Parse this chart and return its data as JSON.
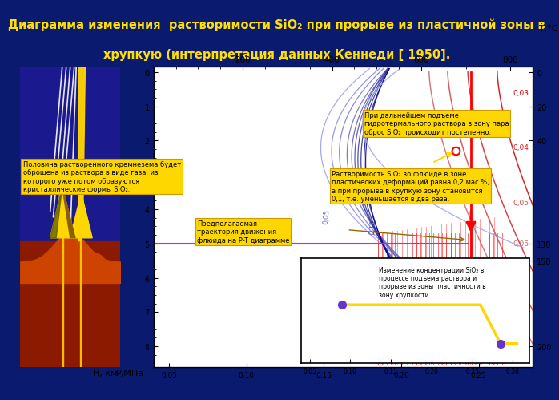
{
  "title_line1": "Диаграмма изменения  растворимости SiO₂ при прорыве из пластичной зоны в",
  "title_line2": "хрупкую (интерпретация данных Кеннеди [ 1950].",
  "title_bg": "#0a1a6e",
  "title_color": "#FFE000",
  "annotation1_text": "Половина растворенного кремнезема будет\nоброшена из раствора в виде газа, из\nкоторого уже потом образуются\nкристаллические формы SiO₂.",
  "annotation2_text": "Предполагаемая\nтраектория движения\nфлюида на P-T диаграмме",
  "annotation3_text": "При дальнейшем подъеме\nгидротермального раствора в зону пара\nоброс SiO₂ происходит постепенно.",
  "annotation4_text": "Растворимость SiO₂ во флюиде в зоне\nпластических деформаций равна 0,2 мас.%,\nа при прорыве в хрупкую зону становится\n0,1, т.е. уменьшается в два раза.",
  "annotation5_text": "Изменение концентрации SiO₂ в\nпроцессе подъема раствора и\nпрорыве из зоны пластичности в\nзону хрупкости."
}
